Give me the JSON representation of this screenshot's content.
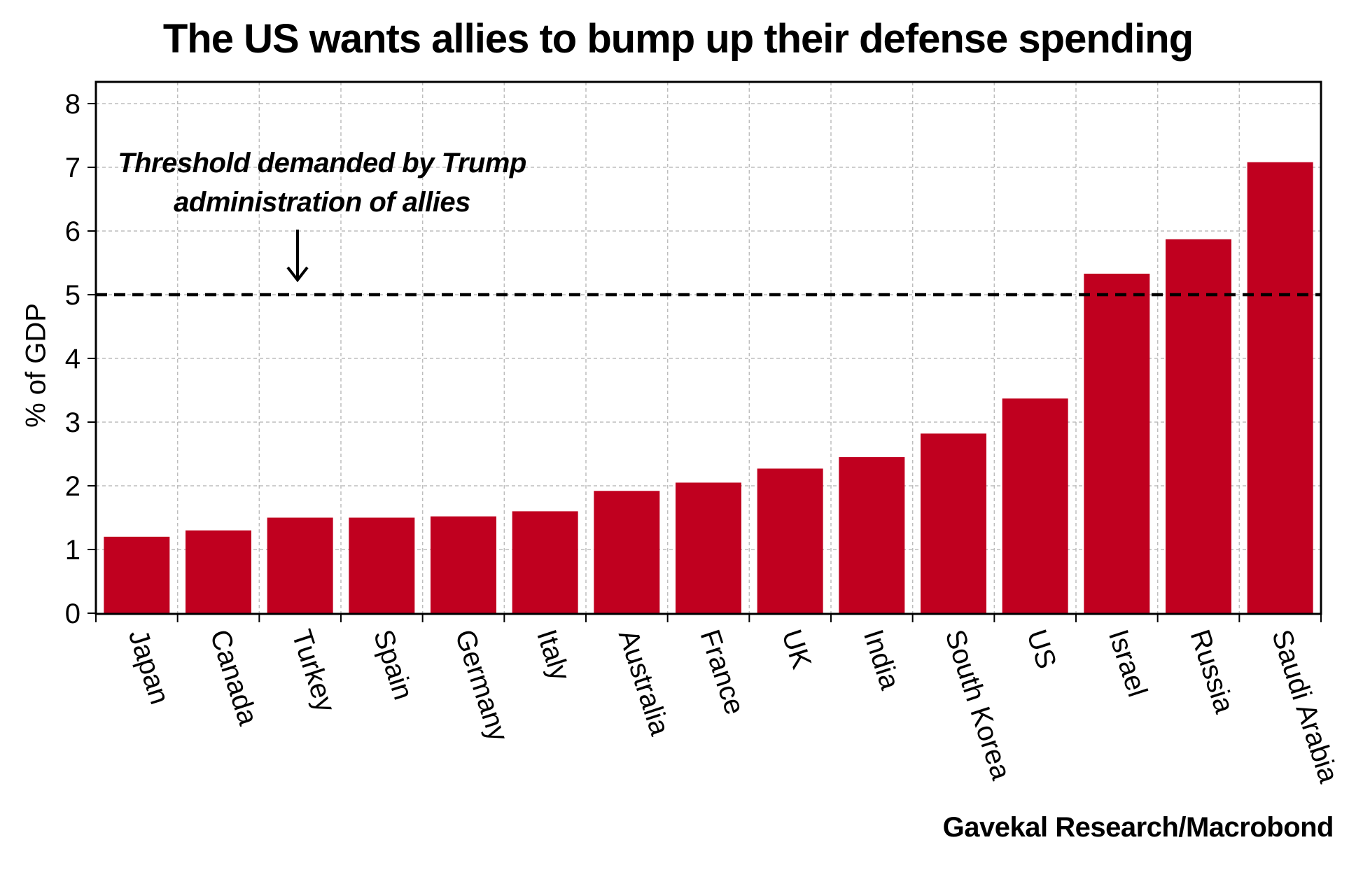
{
  "chart_data": {
    "type": "bar",
    "title": "The US wants allies to bump up their defense spending",
    "ylabel": "% of GDP",
    "xlabel": "",
    "ylim": [
      0,
      8
    ],
    "yticks": [
      "0",
      "1",
      "2",
      "3",
      "4",
      "5",
      "6",
      "7",
      "8"
    ],
    "grid": true,
    "categories": [
      "Japan",
      "Canada",
      "Turkey",
      "Spain",
      "Germany",
      "Italy",
      "Australia",
      "France",
      "UK",
      "India",
      "South Korea",
      "US",
      "Israel",
      "Russia",
      "Saudi Arabia"
    ],
    "values": [
      1.2,
      1.3,
      1.5,
      1.5,
      1.52,
      1.6,
      1.92,
      2.05,
      2.27,
      2.45,
      2.82,
      3.37,
      5.33,
      5.87,
      7.08
    ],
    "bar_color": "#c0001f",
    "threshold": {
      "value": 5,
      "annotation_line1": "Threshold demanded by Trump",
      "annotation_line2": "administration of allies"
    },
    "source": "Gavekal Research/Macrobond"
  }
}
